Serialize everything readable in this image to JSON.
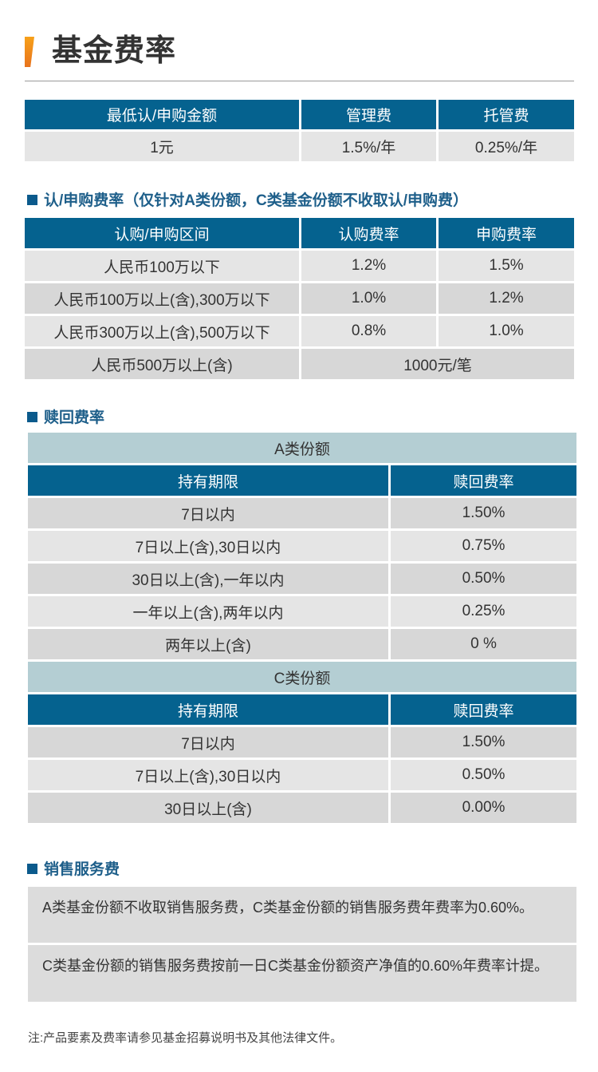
{
  "title": "基金费率",
  "fees_table": {
    "headers": [
      "最低认/申购金额",
      "管理费",
      "托管费"
    ],
    "row": [
      "1元",
      "1.5%/年",
      "0.25%/年"
    ]
  },
  "subscription": {
    "heading": "认/申购费率（仅针对A类份额，C类基金份额不收取认/申购费）",
    "headers": [
      "认购/申购区间",
      "认购费率",
      "申购费率"
    ],
    "rows": [
      [
        "人民币100万以下",
        "1.2%",
        "1.5%"
      ],
      [
        "人民币100万以上(含),300万以下",
        "1.0%",
        "1.2%"
      ],
      [
        "人民币300万以上(含),500万以下",
        "0.8%",
        "1.0%"
      ]
    ],
    "last_row": [
      "人民币500万以上(含)",
      "1000元/笔"
    ]
  },
  "redemption": {
    "heading": "赎回费率",
    "class_a": {
      "title": "A类份额",
      "headers": [
        "持有期限",
        "赎回费率"
      ],
      "rows": [
        [
          "7日以内",
          "1.50%"
        ],
        [
          "7日以上(含),30日以内",
          "0.75%"
        ],
        [
          "30日以上(含),一年以内",
          "0.50%"
        ],
        [
          "一年以上(含),两年以内",
          "0.25%"
        ],
        [
          "两年以上(含)",
          "0 %"
        ]
      ]
    },
    "class_c": {
      "title": "C类份额",
      "headers": [
        "持有期限",
        "赎回费率"
      ],
      "rows": [
        [
          "7日以内",
          "1.50%"
        ],
        [
          "7日以上(含),30日以内",
          "0.50%"
        ],
        [
          "30日以上(含)",
          "0.00%"
        ]
      ]
    }
  },
  "sales_fee": {
    "heading": "销售服务费",
    "paragraphs": [
      "A类基金份额不收取销售服务费，C类基金份额的销售服务费年费率为0.60%。",
      "C类基金份额的销售服务费按前一日C类基金份额资产净值的0.60%年费率计提。"
    ]
  },
  "note": "注:产品要素及费率请参见基金招募说明书及其他法律文件。",
  "colors": {
    "header_blue": "#05628f",
    "accent_orange": "#f39a1c",
    "subheader_teal": "#b4ced3",
    "row_gray": "#e5e5e5"
  }
}
